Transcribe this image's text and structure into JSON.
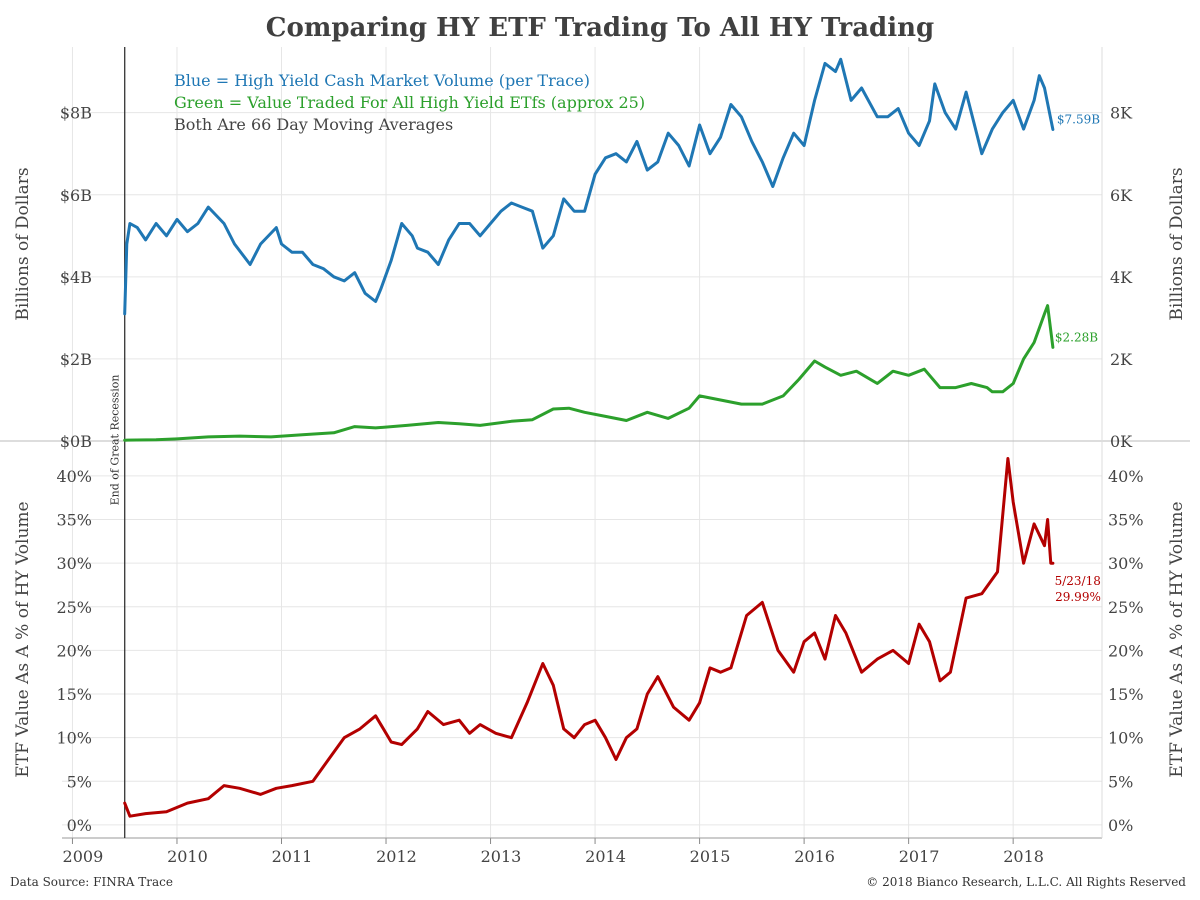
{
  "title": "Comparing HY ETF Trading To All HY Trading",
  "footer": {
    "source": "Data Source: FINRA Trace",
    "copyright": "© 2018 Bianco Research, L.L.C. All Rights Reserved"
  },
  "colors": {
    "blue": "#1f77b4",
    "green": "#2ca02c",
    "red": "#b30000",
    "grid": "#e6e6e6",
    "text": "#444444"
  },
  "recession_label": "End of Great Recession",
  "x_ticks": [
    "2009",
    "2010",
    "2011",
    "2012",
    "2013",
    "2014",
    "2015",
    "2016",
    "2017",
    "2018"
  ],
  "chart_data": [
    {
      "type": "line",
      "panel": "top",
      "title": "",
      "legend": [
        {
          "text": "Blue = High Yield Cash Market Volume (per Trace)",
          "color": "#1f77b4"
        },
        {
          "text": "Green = Value Traded For All High Yield ETfs (approx 25)",
          "color": "#2ca02c"
        },
        {
          "text": "Both Are 66 Day Moving Averages",
          "color": "#444444"
        }
      ],
      "ylabel_left": "Billions of Dollars",
      "ylabel_right": "Billions of Dollars",
      "yticks_left": [
        "$0B",
        "$2B",
        "$4B",
        "$6B",
        "$8B"
      ],
      "yticks_right": [
        "0K",
        "2K",
        "4K",
        "6K",
        "8K"
      ],
      "ylim": [
        0,
        9.6
      ],
      "xlim": [
        2008.9,
        2018.85
      ],
      "recession_end": 2009.5,
      "end_labels": [
        "$7.59B",
        "$2.28B"
      ],
      "series": [
        {
          "name": "High Yield Cash Market Volume",
          "color": "#1f77b4",
          "x": [
            2009.5,
            2009.52,
            2009.55,
            2009.62,
            2009.7,
            2009.8,
            2009.9,
            2010.0,
            2010.1,
            2010.2,
            2010.3,
            2010.45,
            2010.55,
            2010.7,
            2010.8,
            2010.95,
            2011.0,
            2011.1,
            2011.2,
            2011.3,
            2011.4,
            2011.5,
            2011.6,
            2011.7,
            2011.8,
            2011.9,
            2011.95,
            2012.05,
            2012.15,
            2012.25,
            2012.3,
            2012.4,
            2012.5,
            2012.6,
            2012.7,
            2012.8,
            2012.9,
            2013.0,
            2013.1,
            2013.2,
            2013.3,
            2013.4,
            2013.5,
            2013.6,
            2013.7,
            2013.8,
            2013.9,
            2014.0,
            2014.1,
            2014.2,
            2014.3,
            2014.4,
            2014.5,
            2014.6,
            2014.7,
            2014.8,
            2014.9,
            2015.0,
            2015.1,
            2015.2,
            2015.3,
            2015.4,
            2015.5,
            2015.6,
            2015.7,
            2015.8,
            2015.9,
            2016.0,
            2016.1,
            2016.2,
            2016.3,
            2016.35,
            2016.45,
            2016.55,
            2016.7,
            2016.8,
            2016.9,
            2017.0,
            2017.1,
            2017.2,
            2017.25,
            2017.35,
            2017.45,
            2017.55,
            2017.65,
            2017.7,
            2017.8,
            2017.9,
            2018.0,
            2018.1,
            2018.2,
            2018.25,
            2018.3,
            2018.38
          ],
          "y": [
            3.1,
            4.8,
            5.3,
            5.2,
            4.9,
            5.3,
            5.0,
            5.4,
            5.1,
            5.3,
            5.7,
            5.3,
            4.8,
            4.3,
            4.8,
            5.2,
            4.8,
            4.6,
            4.6,
            4.3,
            4.2,
            4.0,
            3.9,
            4.1,
            3.6,
            3.4,
            3.7,
            4.4,
            5.3,
            5.0,
            4.7,
            4.6,
            4.3,
            4.9,
            5.3,
            5.3,
            5.0,
            5.3,
            5.6,
            5.8,
            5.7,
            5.6,
            4.7,
            5.0,
            5.9,
            5.6,
            5.6,
            6.5,
            6.9,
            7.0,
            6.8,
            7.3,
            6.6,
            6.8,
            7.5,
            7.2,
            6.7,
            7.7,
            7.0,
            7.4,
            8.2,
            7.9,
            7.3,
            6.8,
            6.2,
            6.9,
            7.5,
            7.2,
            8.3,
            9.2,
            9.0,
            9.3,
            8.3,
            8.6,
            7.9,
            7.9,
            8.1,
            7.5,
            7.2,
            7.8,
            8.7,
            8.0,
            7.6,
            8.5,
            7.5,
            7.0,
            7.6,
            8.0,
            8.3,
            7.6,
            8.3,
            8.9,
            8.6,
            7.59
          ]
        },
        {
          "name": "Value Traded For All High Yield ETfs",
          "color": "#2ca02c",
          "x": [
            2009.5,
            2009.8,
            2010.0,
            2010.3,
            2010.6,
            2010.9,
            2011.2,
            2011.5,
            2011.7,
            2011.9,
            2012.2,
            2012.5,
            2012.7,
            2012.9,
            2013.2,
            2013.4,
            2013.6,
            2013.75,
            2013.9,
            2014.1,
            2014.3,
            2014.5,
            2014.7,
            2014.9,
            2015.0,
            2015.2,
            2015.4,
            2015.6,
            2015.8,
            2015.95,
            2016.1,
            2016.2,
            2016.35,
            2016.5,
            2016.7,
            2016.85,
            2017.0,
            2017.15,
            2017.3,
            2017.45,
            2017.6,
            2017.75,
            2017.8,
            2017.9,
            2018.0,
            2018.1,
            2018.2,
            2018.3,
            2018.33,
            2018.38
          ],
          "y": [
            0.02,
            0.03,
            0.05,
            0.1,
            0.12,
            0.1,
            0.15,
            0.2,
            0.35,
            0.32,
            0.38,
            0.45,
            0.42,
            0.38,
            0.48,
            0.52,
            0.78,
            0.8,
            0.7,
            0.6,
            0.5,
            0.7,
            0.55,
            0.8,
            1.1,
            1.0,
            0.9,
            0.9,
            1.1,
            1.5,
            1.95,
            1.8,
            1.6,
            1.7,
            1.4,
            1.7,
            1.6,
            1.75,
            1.3,
            1.3,
            1.4,
            1.3,
            1.2,
            1.2,
            1.4,
            2.0,
            2.4,
            3.1,
            3.3,
            2.28
          ]
        }
      ]
    },
    {
      "type": "line",
      "panel": "bottom",
      "title": "",
      "ylabel_left": "ETF Value As A % of HY Volume",
      "ylabel_right": "ETF Value As A % of HY Volume",
      "yticks": [
        "0%",
        "5%",
        "10%",
        "15%",
        "20%",
        "25%",
        "30%",
        "35%",
        "40%"
      ],
      "ylim": [
        -1.5,
        44
      ],
      "xlim": [
        2008.9,
        2018.85
      ],
      "end_label_date": "5/23/18",
      "end_label_value": "29.99%",
      "series": [
        {
          "name": "ETF Value As A % of HY Volume",
          "color": "#b30000",
          "x": [
            2009.5,
            2009.55,
            2009.7,
            2009.9,
            2010.1,
            2010.3,
            2010.45,
            2010.6,
            2010.8,
            2010.95,
            2011.1,
            2011.3,
            2011.45,
            2011.6,
            2011.75,
            2011.9,
            2012.05,
            2012.15,
            2012.3,
            2012.4,
            2012.55,
            2012.7,
            2012.8,
            2012.9,
            2013.05,
            2013.2,
            2013.35,
            2013.5,
            2013.6,
            2013.7,
            2013.8,
            2013.9,
            2014.0,
            2014.1,
            2014.2,
            2014.3,
            2014.4,
            2014.5,
            2014.6,
            2014.75,
            2014.9,
            2015.0,
            2015.1,
            2015.2,
            2015.3,
            2015.45,
            2015.6,
            2015.75,
            2015.9,
            2016.0,
            2016.1,
            2016.2,
            2016.3,
            2016.4,
            2016.55,
            2016.7,
            2016.85,
            2017.0,
            2017.1,
            2017.2,
            2017.3,
            2017.4,
            2017.55,
            2017.7,
            2017.85,
            2017.95,
            2018.0,
            2018.1,
            2018.2,
            2018.3,
            2018.33,
            2018.36,
            2018.38
          ],
          "y": [
            2.5,
            1.0,
            1.3,
            1.5,
            2.5,
            3.0,
            4.5,
            4.2,
            3.5,
            4.2,
            4.5,
            5.0,
            7.5,
            10.0,
            11.0,
            12.5,
            9.5,
            9.2,
            11.0,
            13.0,
            11.5,
            12.0,
            10.5,
            11.5,
            10.5,
            10.0,
            14.0,
            18.5,
            16.0,
            11.0,
            10.0,
            11.5,
            12.0,
            10.0,
            7.5,
            10.0,
            11.0,
            15.0,
            17.0,
            13.5,
            12.0,
            14.0,
            18.0,
            17.5,
            18.0,
            24.0,
            25.5,
            20.0,
            17.5,
            21.0,
            22.0,
            19.0,
            24.0,
            22.0,
            17.5,
            19.0,
            20.0,
            18.5,
            23.0,
            21.0,
            16.5,
            17.5,
            26.0,
            26.5,
            29.0,
            42.0,
            37.0,
            29.99,
            34.5,
            32.0,
            35.0,
            30.0,
            29.99
          ]
        }
      ]
    }
  ]
}
